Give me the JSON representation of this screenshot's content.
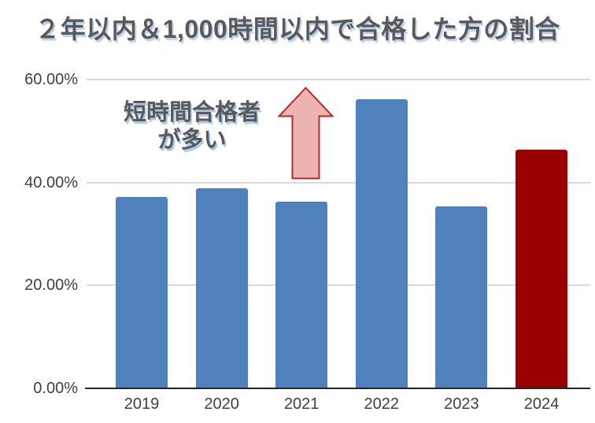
{
  "title": "２年以内＆1,000時間以内で合格した方の割合",
  "annotation": {
    "line1": "短時間合格者",
    "line2": "が多い",
    "full_text": "短時間合格者が多い"
  },
  "icons": {
    "up_arrow": "block-up-arrow-icon"
  },
  "colors": {
    "bar_default": "#4f81bd",
    "bar_highlight": "#990000",
    "arrow_fill": "#edb4b1",
    "arrow_border": "#b12b2b",
    "gridline": "#d9d9d9",
    "axis_line": "#262626",
    "title_text": "#595959",
    "tick_text": "#3f3f3f"
  },
  "chart_data": {
    "type": "bar",
    "title": "２年以内＆1,000時間以内で合格した方の割合",
    "categories": [
      "2019",
      "2020",
      "2021",
      "2022",
      "2023",
      "2024"
    ],
    "values": [
      37.2,
      38.9,
      36.2,
      56.1,
      35.3,
      46.4
    ],
    "bar_colors": [
      "#4f81bd",
      "#4f81bd",
      "#4f81bd",
      "#4f81bd",
      "#4f81bd",
      "#990000"
    ],
    "xlabel": "",
    "ylabel": "",
    "ylim": [
      0,
      60
    ],
    "yticks": [
      0,
      20,
      40,
      60
    ],
    "ytick_labels": [
      "0.00%",
      "20.00%",
      "40.00%",
      "60.00%"
    ],
    "grid": true,
    "legend": false,
    "annotation": "短時間合格者が多い",
    "highlighted_category": "2024"
  }
}
